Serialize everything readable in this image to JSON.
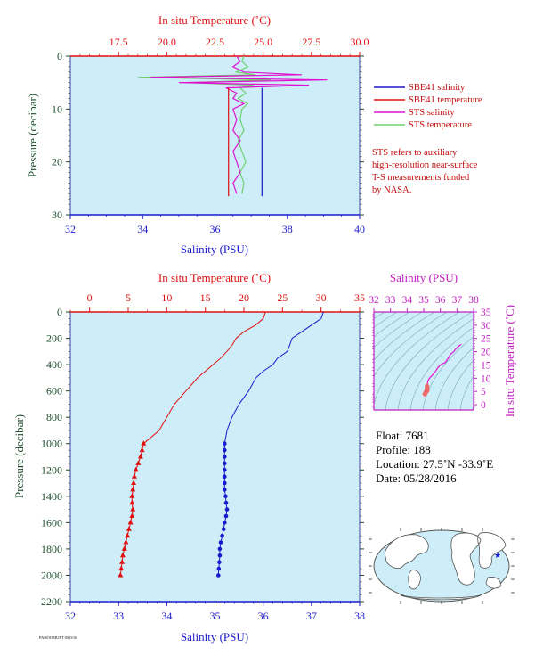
{
  "colors": {
    "plot_bg": "#cdeef8",
    "salinity": "#1a1acc",
    "temperature": "#e01010",
    "sts_salinity": "#e010d0",
    "sts_temperature": "#70d070",
    "ts_axis": "#c020c0",
    "ylabel": "#1e4d2e",
    "info": "#c01010"
  },
  "top": {
    "top_axis_label": "In situ Temperature (˚C)",
    "top_ticks": [
      "17.5",
      "20.0",
      "22.5",
      "25.0",
      "27.5",
      "30.0"
    ],
    "bottom_axis_label": "Salinity (PSU)",
    "bottom_ticks": [
      "32",
      "34",
      "36",
      "38",
      "40"
    ],
    "y_label": "Pressure (decibar)",
    "y_ticks": [
      "0",
      "10",
      "20",
      "30"
    ],
    "legend": [
      {
        "label": "SBE41 salinity",
        "color": "#1a1acc"
      },
      {
        "label": "SBE41 temperature",
        "color": "#e01010"
      },
      {
        "label": "STS salinity",
        "color": "#e010d0"
      },
      {
        "label": "STS temperature",
        "color": "#70d070"
      }
    ],
    "note": [
      "STS refers to auxiliary",
      "high-resolution near-surface",
      "T-S measurements funded",
      "by NASA."
    ]
  },
  "bottom": {
    "top_axis_label": "In situ Temperature (˚C)",
    "top_ticks": [
      "0",
      "5",
      "10",
      "15",
      "20",
      "25",
      "30",
      "35"
    ],
    "bottom_axis_label": "Salinity (PSU)",
    "bottom_ticks": [
      "32",
      "33",
      "34",
      "35",
      "36",
      "37",
      "38"
    ],
    "y_label": "Pressure (decibar)",
    "y_ticks": [
      "0",
      "200",
      "400",
      "600",
      "800",
      "1000",
      "1200",
      "1400",
      "1600",
      "1800",
      "2000",
      "2200"
    ]
  },
  "ts": {
    "top_axis_label": "Salinity (PSU)",
    "top_ticks": [
      "32",
      "33",
      "34",
      "35",
      "36",
      "37",
      "38"
    ],
    "right_axis_label": "In situ Temperature (˚C)",
    "right_ticks": [
      "0",
      "5",
      "10",
      "15",
      "20",
      "25",
      "30",
      "35"
    ]
  },
  "info": {
    "float": "Float:  7681",
    "profile": "Profile:  188",
    "location": "Location:  27.5˚N  -33.9˚E",
    "date": "Date:  05/28/2016"
  },
  "footer": "PAHOOMUPT 05/0/16",
  "chart_data": [
    {
      "type": "line",
      "name": "near-surface profile",
      "y_axis": {
        "label": "Pressure (decibar)",
        "range": [
          30,
          0
        ]
      },
      "x_axis_bottom": {
        "label": "Salinity (PSU)",
        "range": [
          32,
          40
        ]
      },
      "x_axis_top": {
        "label": "In situ Temperature (˚C)",
        "range": [
          15.0,
          30.0
        ]
      },
      "series": [
        {
          "name": "SBE41 salinity",
          "axis": "bottom",
          "pressure": [
            6,
            26.5
          ],
          "values": [
            37.3,
            37.3
          ]
        },
        {
          "name": "SBE41 temperature",
          "axis": "top",
          "pressure": [
            6,
            26.5
          ],
          "values": [
            23.2,
            23.2
          ]
        },
        {
          "name": "STS salinity",
          "axis": "bottom",
          "pressure": [
            0,
            1,
            2,
            3,
            3.5,
            4,
            4.5,
            5,
            5.5,
            6,
            7,
            8,
            9,
            10,
            12,
            14,
            16,
            18,
            20,
            22,
            24,
            26
          ],
          "values": [
            36.6,
            36.7,
            36.5,
            36.8,
            38.4,
            34.2,
            39.1,
            35.0,
            38.6,
            36.3,
            36.6,
            36.5,
            36.8,
            36.5,
            36.6,
            36.5,
            36.7,
            36.5,
            36.6,
            36.7,
            36.5,
            36.6
          ]
        },
        {
          "name": "STS temperature",
          "axis": "top",
          "pressure": [
            0,
            1,
            2,
            3,
            3.5,
            4,
            4.5,
            5,
            5.5,
            6,
            7,
            8,
            9,
            10,
            12,
            14,
            16,
            18,
            20,
            22,
            24,
            26
          ],
          "values": [
            24.0,
            23.9,
            24.2,
            23.6,
            24.6,
            18.5,
            25.4,
            21.0,
            24.5,
            23.8,
            24.1,
            23.7,
            24.2,
            23.9,
            23.8,
            24.0,
            23.7,
            23.9,
            24.1,
            23.8,
            24.0,
            23.9
          ]
        }
      ]
    },
    {
      "type": "line",
      "name": "full profile",
      "y_axis": {
        "label": "Pressure (decibar)",
        "range": [
          2200,
          0
        ]
      },
      "x_axis_bottom": {
        "label": "Salinity (PSU)",
        "range": [
          32,
          38
        ]
      },
      "x_axis_top": {
        "label": "In situ Temperature (˚C)",
        "range": [
          -2.5,
          35
        ]
      },
      "series": [
        {
          "name": "Salinity",
          "axis": "bottom",
          "pressure": [
            0,
            50,
            100,
            150,
            200,
            250,
            300,
            350,
            400,
            450,
            500,
            600,
            700,
            800,
            900,
            1000,
            1050,
            1100,
            1150,
            1200,
            1250,
            1300,
            1350,
            1400,
            1450,
            1500,
            1550,
            1600,
            1650,
            1700,
            1750,
            1800,
            1850,
            1900,
            1950,
            2000
          ],
          "values": [
            37.25,
            37.2,
            37.0,
            36.8,
            36.6,
            36.55,
            36.5,
            36.3,
            36.2,
            36.0,
            35.85,
            35.7,
            35.5,
            35.35,
            35.25,
            35.2,
            35.2,
            35.2,
            35.2,
            35.2,
            35.2,
            35.2,
            35.2,
            35.22,
            35.23,
            35.25,
            35.23,
            35.2,
            35.18,
            35.15,
            35.12,
            35.1,
            35.1,
            35.09,
            35.08,
            35.07
          ]
        },
        {
          "name": "Temperature",
          "axis": "top",
          "pressure": [
            0,
            50,
            100,
            150,
            200,
            250,
            300,
            350,
            400,
            450,
            500,
            600,
            700,
            800,
            900,
            1000,
            1050,
            1100,
            1150,
            1200,
            1250,
            1300,
            1350,
            1400,
            1450,
            1500,
            1550,
            1600,
            1650,
            1700,
            1750,
            1800,
            1850,
            1900,
            1950,
            2000
          ],
          "values": [
            22.8,
            22.5,
            21.5,
            20.0,
            19.0,
            18.5,
            17.8,
            17.0,
            16.0,
            15.0,
            14.0,
            12.5,
            11.0,
            10.0,
            9.0,
            7.0,
            6.8,
            6.6,
            6.3,
            6.0,
            5.8,
            5.7,
            5.6,
            5.5,
            5.5,
            5.6,
            5.5,
            5.3,
            5.1,
            4.9,
            4.7,
            4.5,
            4.3,
            4.2,
            4.1,
            4.0
          ]
        }
      ]
    },
    {
      "type": "scatter",
      "name": "T-S diagram",
      "x_axis": {
        "label": "Salinity (PSU)",
        "range": [
          32,
          38
        ]
      },
      "y_axis": {
        "label": "In situ Temperature (˚C)",
        "range": [
          -2,
          35
        ]
      },
      "series": [
        {
          "name": "T-S",
          "x": [
            37.25,
            37.0,
            36.8,
            36.6,
            36.5,
            36.3,
            36.0,
            35.85,
            35.7,
            35.5,
            35.35,
            35.25,
            35.2,
            35.2,
            35.2,
            35.22,
            35.2,
            35.15,
            35.1,
            35.07
          ],
          "y": [
            22.8,
            21.5,
            20.0,
            19.0,
            17.8,
            16.0,
            15.0,
            14.0,
            12.5,
            11.0,
            10.0,
            9.0,
            7.0,
            6.3,
            5.8,
            5.5,
            5.3,
            4.9,
            4.5,
            4.0
          ]
        }
      ]
    }
  ]
}
